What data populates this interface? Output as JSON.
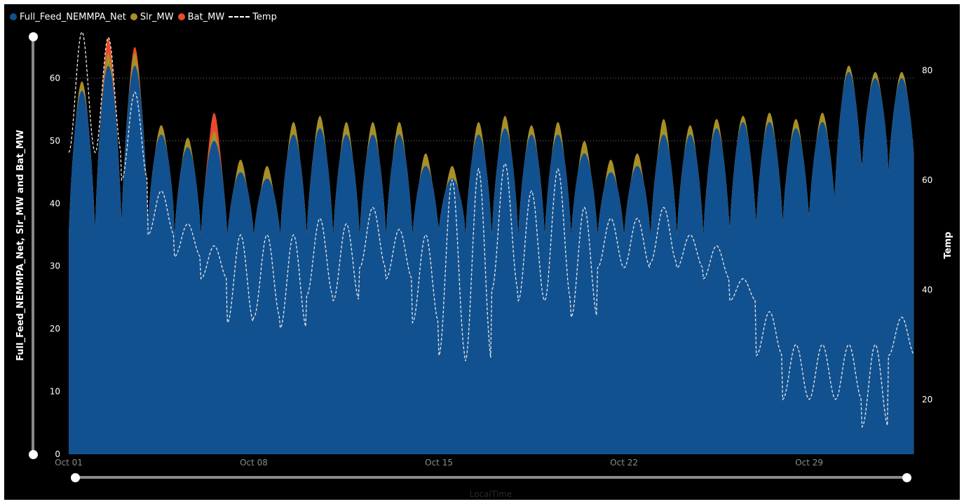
{
  "legend": {
    "items": [
      {
        "label": "Full_Feed_NEMMPA_Net",
        "color": "#12518f"
      },
      {
        "label": "Slr_MW",
        "color": "#a69028"
      },
      {
        "label": "Bat_MW",
        "color": "#e84a2a"
      },
      {
        "label": "Temp",
        "color": "#ffffff",
        "style": "dashed"
      }
    ]
  },
  "chart_data": {
    "type": "area",
    "title": "",
    "xlabel": "LocalTime",
    "ylabel": "Full_Feed_NEMMPA_Net, Slr_MW and Bat_MW",
    "y2label": "Temp",
    "ylim": [
      0,
      70
    ],
    "y2lim": [
      10,
      90
    ],
    "yticks": [
      0,
      10,
      20,
      30,
      40,
      50,
      60
    ],
    "y2ticks": [
      20,
      40,
      60,
      80
    ],
    "x_tick_labels": [
      "Oct 01",
      "Oct 08",
      "Oct 15",
      "Oct 22",
      "Oct 29"
    ],
    "x_tick_days": [
      1,
      8,
      15,
      22,
      29
    ],
    "x_range_days": [
      1,
      33
    ],
    "gridlines": [
      50,
      60
    ],
    "legend_position": "top-left",
    "daily": {
      "day": [
        1,
        2,
        3,
        4,
        5,
        6,
        7,
        8,
        9,
        10,
        11,
        12,
        13,
        14,
        15,
        16,
        17,
        18,
        19,
        20,
        21,
        22,
        23,
        24,
        25,
        26,
        27,
        28,
        29,
        30,
        31,
        32
      ],
      "net_min": [
        35,
        36,
        37,
        37,
        35,
        35,
        35,
        35,
        35,
        35,
        35,
        35,
        35,
        35,
        36,
        35,
        35,
        35,
        35,
        35,
        35,
        35,
        35,
        35,
        35,
        36,
        37,
        37,
        38,
        44,
        46,
        45
      ],
      "net_peak": [
        58,
        62,
        62,
        51,
        49,
        50,
        45,
        44,
        51,
        52,
        51,
        51,
        51,
        46,
        44,
        51,
        52,
        51,
        51,
        48,
        45,
        46,
        51,
        51,
        52,
        53,
        53,
        52,
        53,
        61,
        60,
        60
      ],
      "solar_add": [
        1.5,
        2,
        2,
        1.5,
        1.5,
        1.5,
        2,
        2,
        2,
        2,
        2,
        2,
        2,
        2,
        2,
        2,
        2,
        1.5,
        2,
        2,
        2,
        2,
        2.5,
        1.5,
        1.5,
        1,
        1.5,
        1.5,
        1.5,
        1,
        1,
        1
      ],
      "battery_add": [
        0,
        2.5,
        1,
        0,
        0,
        3,
        0,
        0,
        0,
        0,
        0,
        0,
        0,
        0,
        0,
        0,
        0,
        0,
        0,
        0,
        0,
        0,
        0,
        0,
        0,
        0,
        0,
        0,
        0,
        0,
        0,
        0
      ],
      "temp_max": [
        87,
        86,
        76,
        58,
        52,
        48,
        50,
        50,
        50,
        53,
        52,
        55,
        51,
        50,
        60,
        62,
        63,
        58,
        62,
        55,
        53,
        53,
        55,
        50,
        48,
        42,
        36,
        30,
        30,
        30,
        30,
        35
      ],
      "temp_min": [
        65,
        65,
        60,
        50,
        46,
        42,
        34,
        35,
        33,
        39,
        38,
        44,
        42,
        34,
        28,
        27,
        40,
        38,
        38,
        35,
        44,
        44,
        45,
        44,
        42,
        38,
        28,
        20,
        20,
        20,
        15,
        28
      ]
    },
    "series": [
      {
        "name": "Full_Feed_NEMMPA_Net",
        "axis": "left",
        "render": "area"
      },
      {
        "name": "Slr_MW",
        "axis": "left",
        "render": "stacked-area"
      },
      {
        "name": "Bat_MW",
        "axis": "left",
        "render": "stacked-area"
      },
      {
        "name": "Temp",
        "axis": "right",
        "render": "dashed-line"
      }
    ]
  }
}
